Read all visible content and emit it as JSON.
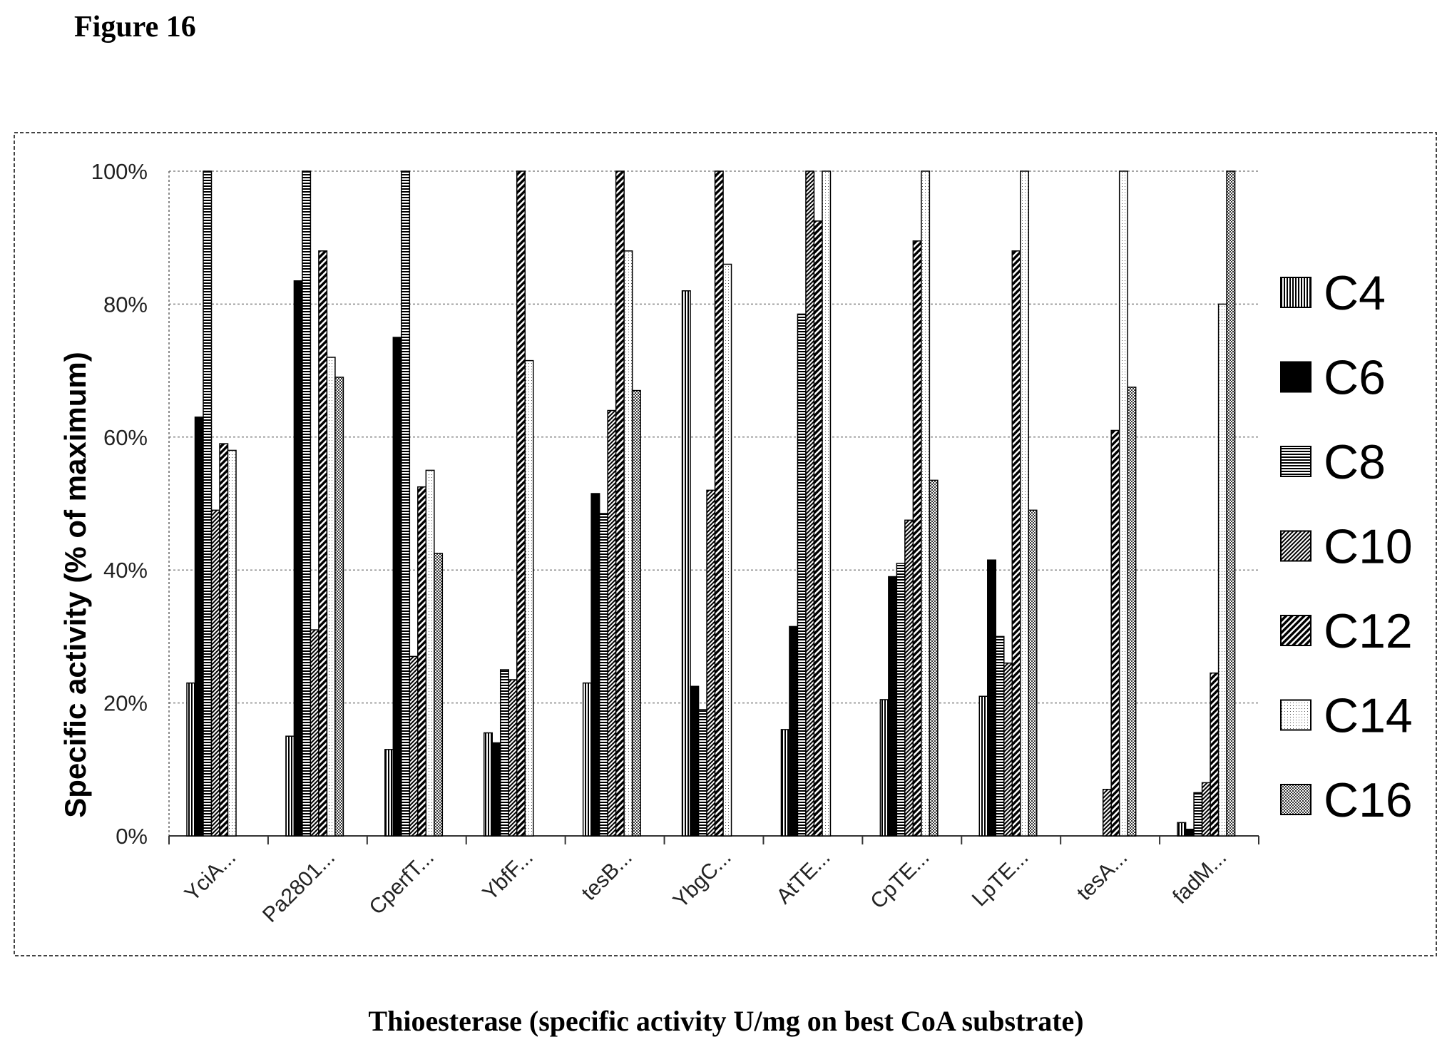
{
  "figure_label": "Figure 16",
  "caption": "Thioesterase (specific activity U/mg on best CoA substrate)",
  "chart_data": {
    "type": "bar",
    "title": "",
    "ylabel": "Specific activity (% of maximum)",
    "xlabel": "",
    "ylim": [
      0,
      100
    ],
    "yticks": [
      "0%",
      "20%",
      "40%",
      "60%",
      "80%",
      "100%"
    ],
    "grid": true,
    "legend_position": "right",
    "categories": [
      "YciA...",
      "Pa2801...",
      "CperfT...",
      "YbfF...",
      "tesB...",
      "YbgC...",
      "AtTE...",
      "CpTE...",
      "LpTE...",
      "tesA...",
      "fadM..."
    ],
    "series": [
      {
        "name": "C4",
        "pattern": "vertical",
        "values": [
          23,
          15,
          13,
          15.5,
          23,
          82,
          16,
          20.5,
          21,
          0,
          2
        ]
      },
      {
        "name": "C6",
        "pattern": "solid",
        "values": [
          63,
          83.5,
          75,
          14,
          51.5,
          22.5,
          31.5,
          39,
          41.5,
          0,
          1
        ]
      },
      {
        "name": "C8",
        "pattern": "horizontal",
        "values": [
          100,
          100,
          100,
          25,
          48.5,
          19,
          78.5,
          41,
          30,
          0,
          6.5
        ]
      },
      {
        "name": "C10",
        "pattern": "diag-dense",
        "values": [
          49,
          31,
          27,
          23.5,
          64,
          52,
          100,
          47.5,
          26,
          7,
          8
        ]
      },
      {
        "name": "C12",
        "pattern": "diag-bold",
        "values": [
          59,
          88,
          52.5,
          100,
          100,
          100,
          92.5,
          89.5,
          88,
          61,
          24.5
        ]
      },
      {
        "name": "C14",
        "pattern": "dots-light",
        "values": [
          58,
          72,
          55,
          71.5,
          88,
          86,
          100,
          100,
          100,
          100,
          80
        ]
      },
      {
        "name": "C16",
        "pattern": "dots-dense",
        "values": [
          0,
          69,
          42.5,
          0,
          67,
          0,
          0,
          53.5,
          49,
          67.5,
          100
        ]
      }
    ]
  }
}
